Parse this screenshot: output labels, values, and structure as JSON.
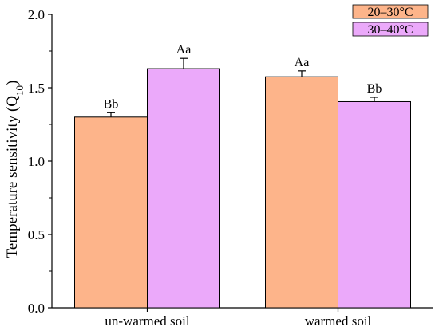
{
  "chart_data": {
    "type": "bar",
    "categories": [
      "un-warmed soil",
      "warmed soil"
    ],
    "series": [
      {
        "name": "20–30°C",
        "color": "#FDB48A",
        "values": [
          1.3,
          1.575
        ],
        "errors": [
          0.03,
          0.04
        ],
        "labels": [
          "Bb",
          "Aa"
        ]
      },
      {
        "name": "30–40°C",
        "color": "#EBA9FA",
        "values": [
          1.63,
          1.405
        ],
        "errors": [
          0.07,
          0.03
        ],
        "labels": [
          "Aa",
          "Bb"
        ]
      }
    ],
    "title": "",
    "xlabel": "",
    "ylabel": "Temperature sensitivity (Q",
    "ylabel_subscript": "10",
    "ylabel_suffix": ")",
    "ylim": [
      0,
      2.0
    ],
    "yticks": [
      "0.0",
      "0.5",
      "1.0",
      "1.5",
      "2.0"
    ],
    "grid": false,
    "legend_position": "top-right"
  }
}
